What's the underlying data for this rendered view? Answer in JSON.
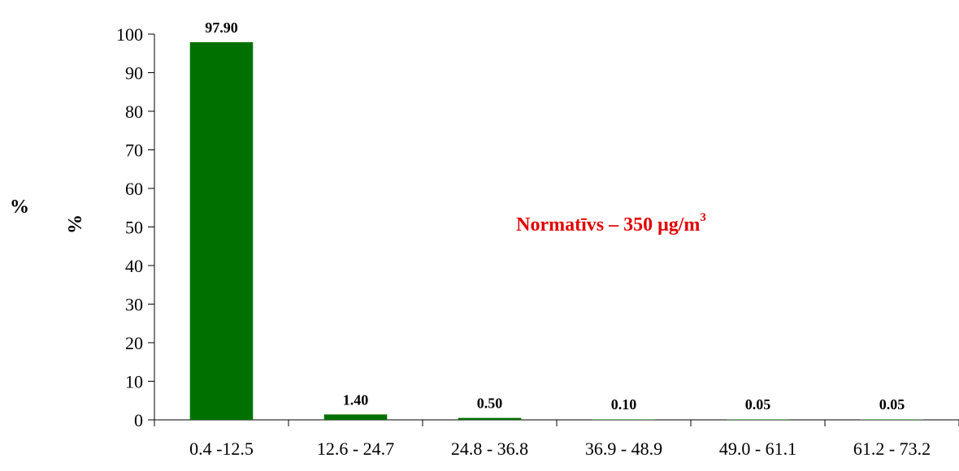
{
  "chart_data": {
    "type": "bar",
    "categories": [
      "0.4 -12.5",
      "12.6 - 24.7",
      "24.8 - 36.8",
      "36.9 - 48.9",
      "49.0 - 61.1",
      "61.2 - 73.2"
    ],
    "values": [
      97.9,
      1.4,
      0.5,
      0.1,
      0.05,
      0.05
    ],
    "data_labels": [
      "97.90",
      "1.40",
      "0.50",
      "0.10",
      "0.05",
      "0.05"
    ],
    "ylabel": "%",
    "outer_label": "%",
    "ylim": [
      0,
      100
    ],
    "yticks": [
      0,
      10,
      20,
      30,
      40,
      50,
      60,
      70,
      80,
      90,
      100
    ],
    "grid": false,
    "bar_color": "#007000",
    "annotation": {
      "text_main": "Normatīvs – 350 μg/m",
      "text_sup": "3",
      "color": "#e00000"
    }
  }
}
